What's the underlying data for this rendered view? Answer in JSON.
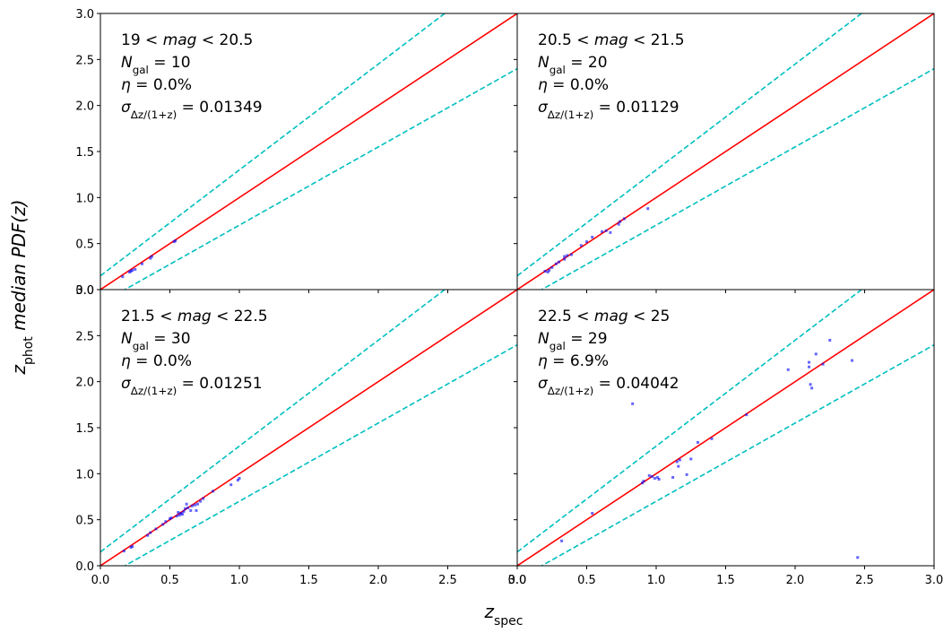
{
  "chart_data": [
    {
      "type": "scatter",
      "color": "#0000ff",
      "annotations": [
        [
          {
            "text": "19 < "
          },
          {
            "text": "mag",
            "italic": true
          },
          {
            "text": " < 20.5"
          }
        ],
        [
          {
            "text": "N",
            "italic": true
          },
          {
            "text": "gal",
            "sub": true
          },
          {
            "text": " = 10"
          }
        ],
        [
          {
            "text": "η",
            "italic": true
          },
          {
            "text": " = 0.0%"
          }
        ],
        [
          {
            "text": "σ",
            "italic": true
          },
          {
            "text": "Δz/(1+z)",
            "sub": true
          },
          {
            "text": " = 0.01349"
          }
        ]
      ],
      "x": [
        0.21,
        0.23,
        0.22,
        0.36,
        0.37,
        0.53,
        0.54,
        0.25,
        0.3,
        0.16
      ],
      "y": [
        0.19,
        0.21,
        0.2,
        0.34,
        0.36,
        0.52,
        0.53,
        0.22,
        0.28,
        0.14
      ],
      "lines": [
        {
          "color": "#ff0000",
          "slope": 1,
          "intercept": 0,
          "dashed": false
        },
        {
          "color": "#00bfbf",
          "slope": 1.15,
          "intercept": 0.15,
          "dashed": true
        },
        {
          "color": "#00bfbf",
          "slope": 0.85,
          "intercept": -0.15,
          "dashed": true
        }
      ],
      "xlim": [
        0,
        3
      ],
      "ylim": [
        0,
        3
      ],
      "xticks": [
        {
          "value": 0,
          "label": "0.0"
        },
        {
          "value": 0.5,
          "label": "0.5"
        },
        {
          "value": 1,
          "label": "1.0"
        },
        {
          "value": 1.5,
          "label": "1.5"
        },
        {
          "value": 2,
          "label": "2.0"
        },
        {
          "value": 2.5,
          "label": "2.5"
        },
        {
          "value": 3,
          "label": "3.0"
        }
      ],
      "yticks": [
        {
          "value": 0,
          "label": "0.0"
        },
        {
          "value": 0.5,
          "label": "0.5"
        },
        {
          "value": 1,
          "label": "1.0"
        },
        {
          "value": 1.5,
          "label": "1.5"
        },
        {
          "value": 2,
          "label": "2.0"
        },
        {
          "value": 2.5,
          "label": "2.5"
        },
        {
          "value": 3,
          "label": "3.0"
        }
      ],
      "show_xticklabels": false,
      "show_yticklabels": true
    },
    {
      "type": "scatter",
      "color": "#0000ff",
      "annotations": [
        [
          {
            "text": "20.5 < "
          },
          {
            "text": "mag",
            "italic": true
          },
          {
            "text": " < 21.5"
          }
        ],
        [
          {
            "text": "N",
            "italic": true
          },
          {
            "text": "gal",
            "sub": true
          },
          {
            "text": " = 20"
          }
        ],
        [
          {
            "text": "η",
            "italic": true
          },
          {
            "text": " = 0.0%"
          }
        ],
        [
          {
            "text": "σ",
            "italic": true
          },
          {
            "text": "Δz/(1+z)",
            "sub": true
          },
          {
            "text": " = 0.01129"
          }
        ]
      ],
      "x": [
        0.23,
        0.2,
        0.28,
        0.34,
        0.34,
        0.36,
        0.46,
        0.54,
        0.61,
        0.67,
        0.73,
        0.74,
        0.94,
        0.77,
        0.22,
        0.3,
        0.39,
        0.5,
        0.64,
        0.25
      ],
      "y": [
        0.21,
        0.2,
        0.28,
        0.33,
        0.36,
        0.37,
        0.48,
        0.57,
        0.63,
        0.62,
        0.71,
        0.74,
        0.88,
        0.77,
        0.19,
        0.3,
        0.38,
        0.52,
        0.64,
        0.24
      ],
      "lines": [
        {
          "color": "#ff0000",
          "slope": 1,
          "intercept": 0,
          "dashed": false
        },
        {
          "color": "#00bfbf",
          "slope": 1.15,
          "intercept": 0.15,
          "dashed": true
        },
        {
          "color": "#00bfbf",
          "slope": 0.85,
          "intercept": -0.15,
          "dashed": true
        }
      ],
      "xlim": [
        0,
        3
      ],
      "ylim": [
        0,
        3
      ],
      "xticks": [
        {
          "value": 0,
          "label": "0.0"
        },
        {
          "value": 0.5,
          "label": "0.5"
        },
        {
          "value": 1,
          "label": "1.0"
        },
        {
          "value": 1.5,
          "label": "1.5"
        },
        {
          "value": 2,
          "label": "2.0"
        },
        {
          "value": 2.5,
          "label": "2.5"
        },
        {
          "value": 3,
          "label": "3.0"
        }
      ],
      "yticks": [
        {
          "value": 0,
          "label": "0.0"
        },
        {
          "value": 0.5,
          "label": "0.5"
        },
        {
          "value": 1,
          "label": "1.0"
        },
        {
          "value": 1.5,
          "label": "1.5"
        },
        {
          "value": 2,
          "label": "2.0"
        },
        {
          "value": 2.5,
          "label": "2.5"
        },
        {
          "value": 3,
          "label": "3.0"
        }
      ],
      "show_xticklabels": false,
      "show_yticklabels": false
    },
    {
      "type": "scatter",
      "color": "#0000ff",
      "annotations": [
        [
          {
            "text": "21.5 < "
          },
          {
            "text": "mag",
            "italic": true
          },
          {
            "text": " < 22.5"
          }
        ],
        [
          {
            "text": "N",
            "italic": true
          },
          {
            "text": "gal",
            "sub": true
          },
          {
            "text": " = 30"
          }
        ],
        [
          {
            "text": "η",
            "italic": true
          },
          {
            "text": " = 0.0%"
          }
        ],
        [
          {
            "text": "σ",
            "italic": true
          },
          {
            "text": "Δz/(1+z)",
            "sub": true
          },
          {
            "text": " = 0.01251"
          }
        ]
      ],
      "x": [
        0.23,
        0.22,
        0.36,
        0.34,
        0.5,
        0.51,
        0.57,
        0.58,
        0.6,
        0.62,
        0.65,
        0.69,
        0.7,
        0.74,
        0.81,
        0.94,
        0.99,
        1.0,
        0.17,
        0.45,
        0.55,
        0.56,
        0.63,
        0.66,
        0.72,
        0.59,
        0.47,
        0.4,
        0.61,
        0.68
      ],
      "y": [
        0.21,
        0.2,
        0.36,
        0.33,
        0.51,
        0.52,
        0.55,
        0.57,
        0.59,
        0.67,
        0.6,
        0.6,
        0.67,
        0.73,
        0.81,
        0.88,
        0.93,
        0.95,
        0.16,
        0.45,
        0.54,
        0.58,
        0.63,
        0.65,
        0.7,
        0.56,
        0.48,
        0.4,
        0.62,
        0.66
      ],
      "lines": [
        {
          "color": "#ff0000",
          "slope": 1,
          "intercept": 0,
          "dashed": false
        },
        {
          "color": "#00bfbf",
          "slope": 1.15,
          "intercept": 0.15,
          "dashed": true
        },
        {
          "color": "#00bfbf",
          "slope": 0.85,
          "intercept": -0.15,
          "dashed": true
        }
      ],
      "xlim": [
        0,
        3
      ],
      "ylim": [
        0,
        3
      ],
      "xticks": [
        {
          "value": 0,
          "label": "0.0"
        },
        {
          "value": 0.5,
          "label": "0.5"
        },
        {
          "value": 1,
          "label": "1.0"
        },
        {
          "value": 1.5,
          "label": "1.5"
        },
        {
          "value": 2,
          "label": "2.0"
        },
        {
          "value": 2.5,
          "label": "2.5"
        },
        {
          "value": 3,
          "label": "3.0"
        }
      ],
      "yticks": [
        {
          "value": 0,
          "label": "0.0"
        },
        {
          "value": 0.5,
          "label": "0.5"
        },
        {
          "value": 1,
          "label": "1.0"
        },
        {
          "value": 1.5,
          "label": "1.5"
        },
        {
          "value": 2,
          "label": "2.0"
        },
        {
          "value": 2.5,
          "label": "2.5"
        },
        {
          "value": 3,
          "label": "3.0"
        }
      ],
      "show_xticklabels": true,
      "show_yticklabels": true
    },
    {
      "type": "scatter",
      "color": "#0000ff",
      "annotations": [
        [
          {
            "text": "22.5 < "
          },
          {
            "text": "mag",
            "italic": true
          },
          {
            "text": " < 25"
          }
        ],
        [
          {
            "text": "N",
            "italic": true
          },
          {
            "text": "gal",
            "sub": true
          },
          {
            "text": " = 29"
          }
        ],
        [
          {
            "text": "η",
            "italic": true
          },
          {
            "text": " = 6.9%"
          }
        ],
        [
          {
            "text": "σ",
            "italic": true
          },
          {
            "text": "Δz/(1+z)",
            "sub": true
          },
          {
            "text": " = 0.04042"
          }
        ]
      ],
      "x": [
        0.32,
        0.83,
        0.9,
        0.95,
        0.99,
        1.02,
        1.12,
        1.15,
        1.16,
        1.22,
        1.25,
        1.3,
        1.4,
        1.65,
        1.95,
        2.1,
        2.1,
        2.11,
        2.12,
        2.15,
        2.2,
        2.25,
        2.41,
        2.45,
        0.54,
        0.91,
        1.01,
        1.17,
        0.97
      ],
      "y": [
        0.27,
        1.76,
        0.9,
        0.98,
        0.95,
        0.94,
        0.96,
        1.13,
        1.08,
        0.99,
        1.16,
        1.34,
        1.38,
        1.64,
        2.13,
        2.21,
        2.16,
        1.97,
        1.93,
        2.3,
        2.19,
        2.45,
        2.23,
        0.09,
        0.57,
        0.92,
        0.96,
        1.15,
        0.97
      ],
      "lines": [
        {
          "color": "#ff0000",
          "slope": 1,
          "intercept": 0,
          "dashed": false
        },
        {
          "color": "#00bfbf",
          "slope": 1.15,
          "intercept": 0.15,
          "dashed": true
        },
        {
          "color": "#00bfbf",
          "slope": 0.85,
          "intercept": -0.15,
          "dashed": true
        }
      ],
      "xlim": [
        0,
        3
      ],
      "ylim": [
        0,
        3
      ],
      "xticks": [
        {
          "value": 0,
          "label": "0.0"
        },
        {
          "value": 0.5,
          "label": "0.5"
        },
        {
          "value": 1,
          "label": "1.0"
        },
        {
          "value": 1.5,
          "label": "1.5"
        },
        {
          "value": 2,
          "label": "2.0"
        },
        {
          "value": 2.5,
          "label": "2.5"
        },
        {
          "value": 3,
          "label": "3.0"
        }
      ],
      "yticks": [
        {
          "value": 0,
          "label": "0.0"
        },
        {
          "value": 0.5,
          "label": "0.5"
        },
        {
          "value": 1,
          "label": "1.0"
        },
        {
          "value": 1.5,
          "label": "1.5"
        },
        {
          "value": 2,
          "label": "2.0"
        },
        {
          "value": 2.5,
          "label": "2.5"
        },
        {
          "value": 3,
          "label": "3.0"
        }
      ],
      "show_xticklabels": true,
      "show_yticklabels": false
    }
  ],
  "xlabel": [
    {
      "text": "z",
      "italic": true
    },
    {
      "text": "spec",
      "sub": true
    }
  ],
  "ylabel": [
    {
      "text": "z",
      "italic": true
    },
    {
      "text": "phot",
      "sub": true
    },
    {
      "text": " median PDF(z)",
      "italic": true
    }
  ]
}
